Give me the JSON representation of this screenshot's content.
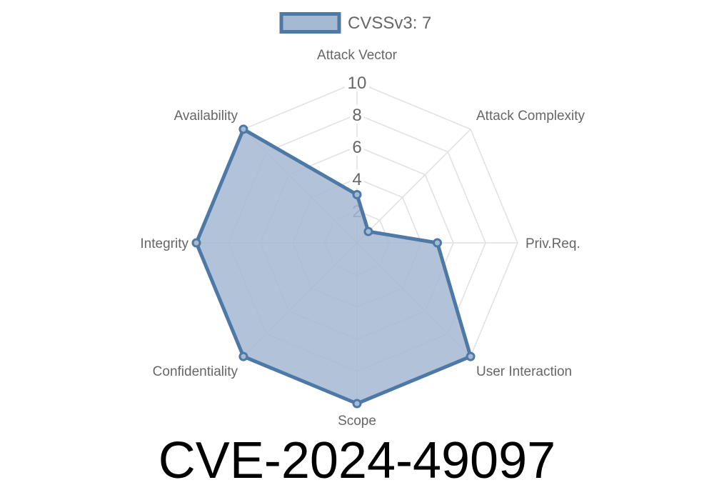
{
  "chart_data": {
    "type": "radar",
    "axes": [
      "Attack Vector",
      "Attack Complexity",
      "Priv.Req.",
      "User Interaction",
      "Scope",
      "Confidentiality",
      "Integrity",
      "Availability"
    ],
    "series": [
      {
        "name": "CVSSv3: 7",
        "values": [
          3,
          1,
          5,
          10,
          10,
          10,
          10,
          10
        ]
      }
    ],
    "rlim": [
      0,
      10
    ],
    "ticks": [
      "2",
      "4",
      "6",
      "8",
      "10"
    ],
    "tick_values": [
      2,
      4,
      6,
      8,
      10
    ],
    "legend": "top",
    "grid": true,
    "colors": {
      "line": "#4e79a7",
      "fill": "#a5b9d2",
      "grid": "#e0e0e0",
      "text": "#666666"
    }
  },
  "title": "CVE-2024-49097"
}
